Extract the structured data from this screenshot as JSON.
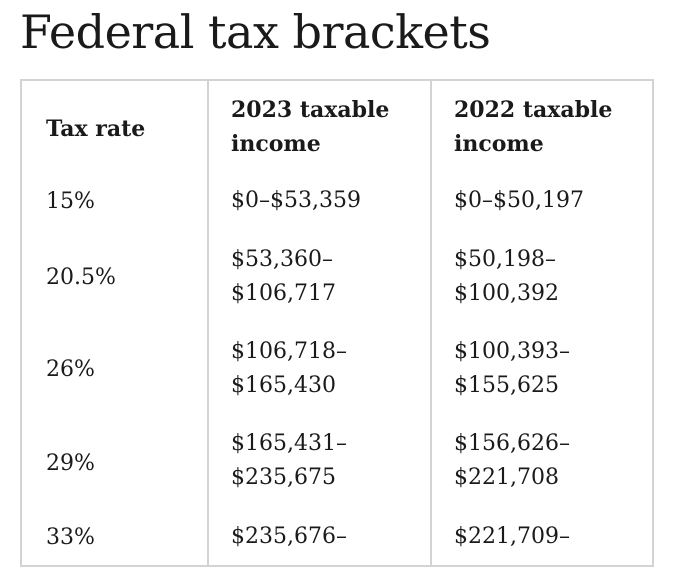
{
  "title": "Federal tax brackets",
  "table": {
    "headers": [
      "Tax rate",
      "2023 taxable\nincome",
      "2022 taxable\nincome"
    ],
    "header_lines": {
      "rate": [
        "Tax rate"
      ],
      "y2023": [
        "2023 taxable",
        "income"
      ],
      "y2022": [
        "2022 taxable",
        "income"
      ]
    },
    "rows": [
      {
        "rate": "15%",
        "y2023": [
          "$0–$53,359"
        ],
        "y2022": [
          "$0–$50,197"
        ]
      },
      {
        "rate": "20.5%",
        "y2023": [
          "$53,360–",
          "$106,717"
        ],
        "y2022": [
          "$50,198–",
          "$100,392"
        ]
      },
      {
        "rate": "26%",
        "y2023": [
          "$106,718–",
          "$165,430"
        ],
        "y2022": [
          "$100,393–",
          "$155,625"
        ]
      },
      {
        "rate": "29%",
        "y2023": [
          "$165,431–",
          "$235,675"
        ],
        "y2022": [
          "$156,626–",
          "$221,708"
        ]
      },
      {
        "rate": "33%",
        "y2023": [
          "$235,676–"
        ],
        "y2022": [
          "$221,709–"
        ]
      }
    ]
  }
}
